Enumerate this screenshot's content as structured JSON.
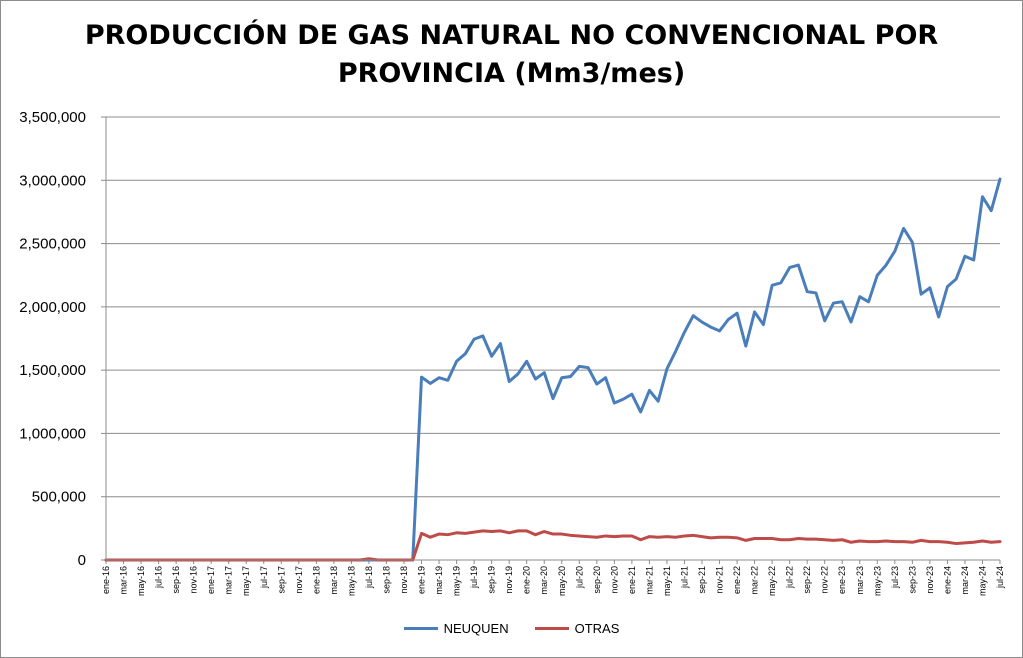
{
  "chart_data": {
    "type": "line",
    "title_line1": "PRODUCCIÓN DE GAS NATURAL NO CONVENCIONAL POR",
    "title_line2": "PROVINCIA (Mm3/mes)",
    "xlabel": "",
    "ylabel": "",
    "ylim": [
      0,
      3500000
    ],
    "yticks": [
      0,
      500000,
      1000000,
      1500000,
      2000000,
      2500000,
      3000000,
      3500000
    ],
    "ytick_labels": [
      "0",
      "500,000",
      "1,000,000",
      "1,500,000",
      "2,000,000",
      "2,500,000",
      "3,000,000",
      "3,500,000"
    ],
    "grid": "horizontal",
    "legend_position": "bottom",
    "x": [
      "ene-16",
      "feb-16",
      "mar-16",
      "abr-16",
      "may-16",
      "jun-16",
      "jul-16",
      "ago-16",
      "sep-16",
      "oct-16",
      "nov-16",
      "dic-16",
      "ene-17",
      "feb-17",
      "mar-17",
      "abr-17",
      "may-17",
      "jun-17",
      "jul-17",
      "ago-17",
      "sep-17",
      "oct-17",
      "nov-17",
      "dic-17",
      "ene-18",
      "feb-18",
      "mar-18",
      "abr-18",
      "may-18",
      "jun-18",
      "jul-18",
      "ago-18",
      "sep-18",
      "oct-18",
      "nov-18",
      "dic-18",
      "ene-19",
      "feb-19",
      "mar-19",
      "abr-19",
      "may-19",
      "jun-19",
      "jul-19",
      "ago-19",
      "sep-19",
      "oct-19",
      "nov-19",
      "dic-19",
      "ene-20",
      "feb-20",
      "mar-20",
      "abr-20",
      "may-20",
      "jun-20",
      "jul-20",
      "ago-20",
      "sep-20",
      "oct-20",
      "nov-20",
      "dic-20",
      "ene-21",
      "feb-21",
      "mar-21",
      "abr-21",
      "may-21",
      "jun-21",
      "jul-21",
      "ago-21",
      "sep-21",
      "oct-21",
      "nov-21",
      "dic-21",
      "ene-22",
      "feb-22",
      "mar-22",
      "abr-22",
      "may-22",
      "jun-22",
      "jul-22",
      "ago-22",
      "sep-22",
      "oct-22",
      "nov-22",
      "dic-22",
      "ene-23",
      "feb-23",
      "mar-23",
      "abr-23",
      "may-23",
      "jun-23",
      "jul-23",
      "ago-23",
      "sep-23",
      "oct-23",
      "nov-23",
      "dic-23",
      "ene-24",
      "feb-24",
      "mar-24",
      "abr-24",
      "may-24",
      "jun-24",
      "jul-24"
    ],
    "x_tick_labels": [
      "ene-16",
      "mar-16",
      "may-16",
      "jul-16",
      "sep-16",
      "nov-16",
      "ene-17",
      "mar-17",
      "may-17",
      "jul-17",
      "sep-17",
      "nov-17",
      "ene-18",
      "mar-18",
      "may-18",
      "jul-18",
      "sep-18",
      "nov-18",
      "ene-19",
      "mar-19",
      "may-19",
      "jul-19",
      "sep-19",
      "nov-19",
      "ene-20",
      "mar-20",
      "may-20",
      "jul-20",
      "sep-20",
      "nov-20",
      "ene-21",
      "mar-21",
      "may-21",
      "jul-21",
      "sep-21",
      "nov-21",
      "ene-22",
      "mar-22",
      "may-22",
      "jul-22",
      "sep-22",
      "nov-22",
      "ene-23",
      "mar-23",
      "may-23",
      "jul-23",
      "sep-23",
      "nov-23",
      "ene-24",
      "mar-24",
      "may-24",
      "jul-24"
    ],
    "series": [
      {
        "name": "NEUQUEN",
        "color": "#4a7ebb",
        "values": [
          0,
          0,
          0,
          0,
          0,
          0,
          0,
          0,
          0,
          0,
          0,
          0,
          0,
          0,
          0,
          0,
          0,
          0,
          0,
          0,
          0,
          0,
          0,
          0,
          0,
          0,
          0,
          0,
          0,
          0,
          0,
          0,
          0,
          0,
          0,
          0,
          1445000,
          1395000,
          1440000,
          1420000,
          1570000,
          1630000,
          1745000,
          1770000,
          1610000,
          1710000,
          1410000,
          1470000,
          1570000,
          1430000,
          1480000,
          1275000,
          1440000,
          1450000,
          1530000,
          1520000,
          1390000,
          1440000,
          1240000,
          1270000,
          1310000,
          1170000,
          1340000,
          1255000,
          1510000,
          1650000,
          1800000,
          1930000,
          1880000,
          1840000,
          1810000,
          1900000,
          1950000,
          1690000,
          1960000,
          1860000,
          2170000,
          2190000,
          2310000,
          2330000,
          2120000,
          2110000,
          1890000,
          2030000,
          2040000,
          1880000,
          2080000,
          2040000,
          2250000,
          2330000,
          2440000,
          2620000,
          2510000,
          2100000,
          2150000,
          1920000,
          2160000,
          2220000,
          2400000,
          2370000,
          2870000,
          2760000,
          3010000
        ]
      },
      {
        "name": "OTRAS",
        "color": "#be4b48",
        "values": [
          0,
          0,
          0,
          0,
          0,
          0,
          0,
          0,
          0,
          0,
          0,
          0,
          0,
          0,
          0,
          0,
          0,
          0,
          0,
          0,
          0,
          0,
          0,
          0,
          0,
          0,
          0,
          0,
          0,
          0,
          10000,
          0,
          0,
          0,
          0,
          0,
          210000,
          180000,
          205000,
          200000,
          215000,
          210000,
          220000,
          230000,
          225000,
          230000,
          215000,
          230000,
          230000,
          200000,
          225000,
          205000,
          205000,
          195000,
          190000,
          185000,
          180000,
          190000,
          185000,
          190000,
          190000,
          160000,
          185000,
          180000,
          185000,
          180000,
          190000,
          195000,
          185000,
          175000,
          180000,
          180000,
          175000,
          155000,
          170000,
          170000,
          170000,
          160000,
          160000,
          170000,
          165000,
          165000,
          160000,
          155000,
          160000,
          140000,
          150000,
          145000,
          145000,
          150000,
          145000,
          145000,
          140000,
          155000,
          145000,
          145000,
          140000,
          130000,
          135000,
          140000,
          150000,
          140000,
          145000
        ]
      }
    ]
  }
}
